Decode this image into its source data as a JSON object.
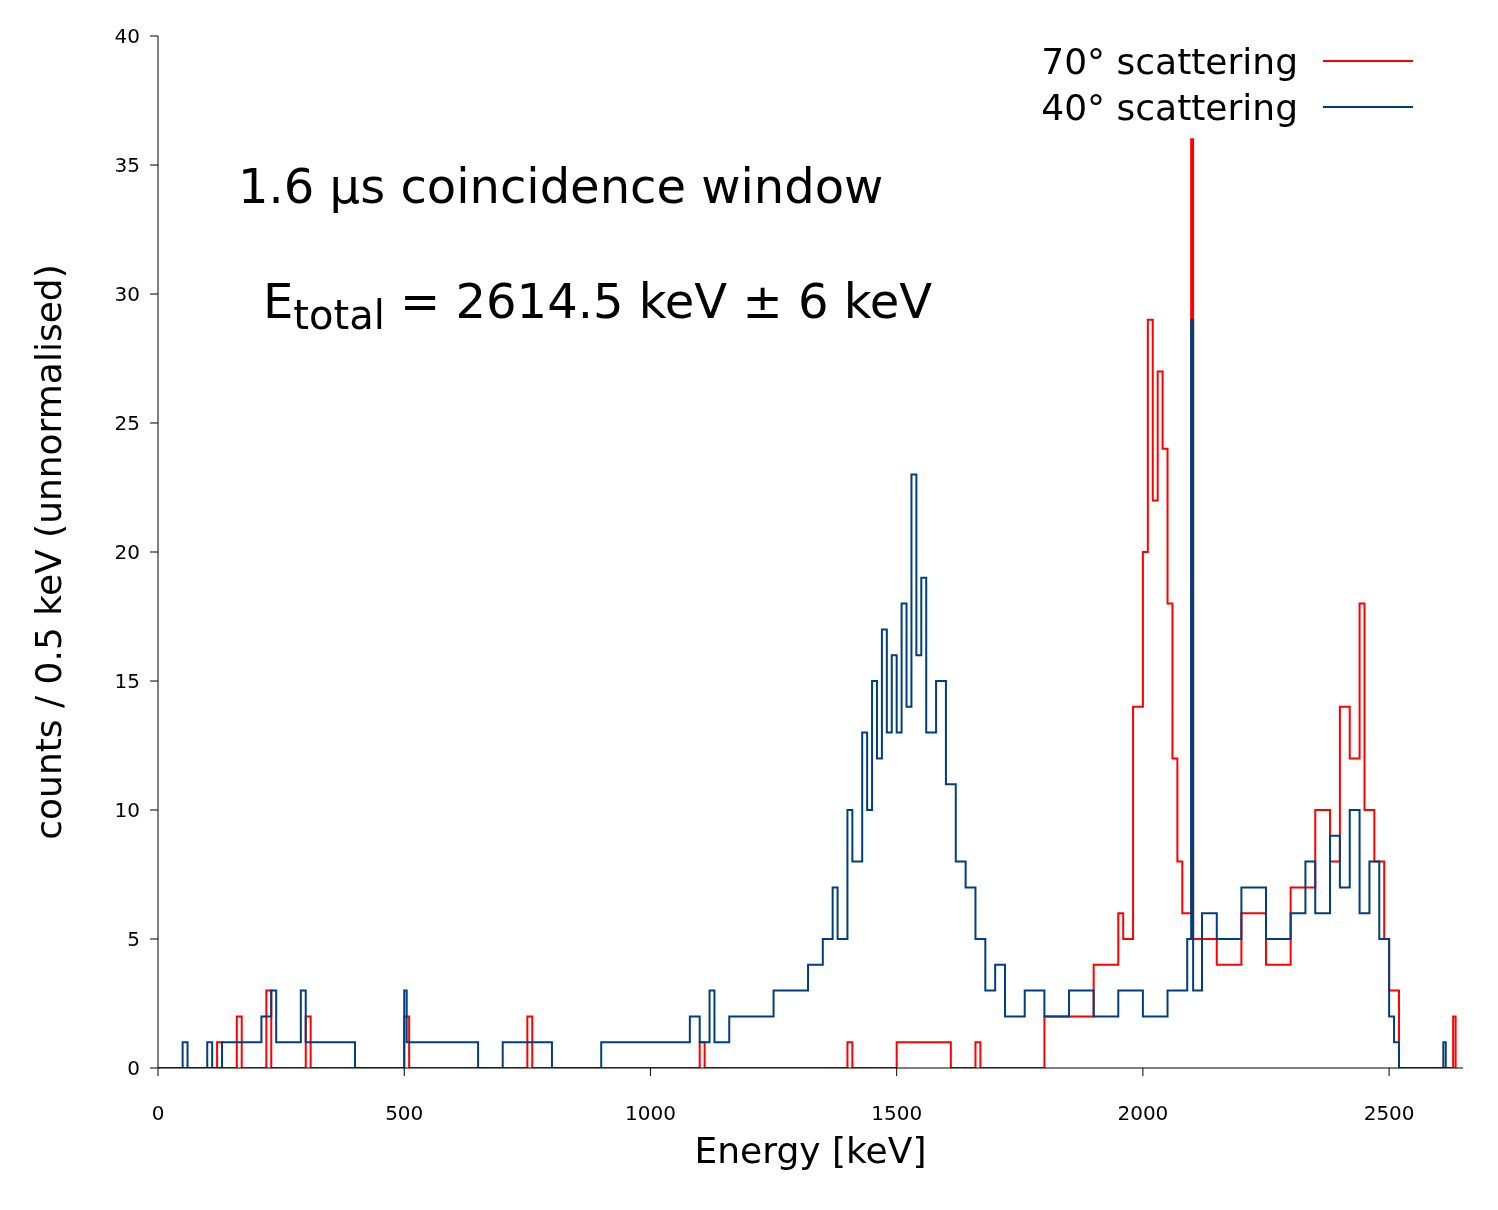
{
  "chart_data": {
    "type": "step",
    "xlabel": "Energy [keV]",
    "ylabel": "counts / 0.5 keV (unnormalised)",
    "annotations": [
      "1.6 μs coincidence window",
      "E$_{total}$ = 2614.5 keV ± 6 keV"
    ],
    "xlim": [
      0,
      2650
    ],
    "xticks": [
      0,
      500,
      1000,
      1500,
      2000,
      2500
    ],
    "ylim": [
      0,
      40
    ],
    "yticks": [
      0,
      5,
      10,
      15,
      20,
      25,
      30,
      35,
      40
    ],
    "legend": "top right",
    "series": [
      {
        "name": "70° scattering",
        "color": "#ff0000",
        "x": [
          0,
          120,
          130,
          160,
          170,
          220,
          230,
          300,
          310,
          500,
          510,
          750,
          760,
          1100,
          1110,
          1400,
          1410,
          1500,
          1600,
          1610,
          1660,
          1670,
          1800,
          1900,
          1950,
          1960,
          1980,
          2000,
          2010,
          2020,
          2030,
          2040,
          2050,
          2060,
          2070,
          2080,
          2098,
          2102,
          2150,
          2200,
          2250,
          2300,
          2350,
          2380,
          2400,
          2420,
          2440,
          2450,
          2470,
          2490,
          2500,
          2520,
          2630,
          2635
        ],
        "values": [
          0,
          1,
          0,
          2,
          0,
          3,
          0,
          2,
          0,
          2,
          0,
          2,
          0,
          1,
          0,
          1,
          0,
          1,
          1,
          0,
          1,
          0,
          2,
          4,
          6,
          5,
          14,
          20,
          29,
          22,
          27,
          24,
          18,
          12,
          8,
          6,
          36,
          5,
          4,
          6,
          4,
          7,
          10,
          8,
          14,
          12,
          18,
          10,
          8,
          5,
          3,
          0,
          2,
          0
        ]
      },
      {
        "name": "40° scattering",
        "color": "#003f7f",
        "x": [
          0,
          50,
          60,
          100,
          110,
          130,
          200,
          210,
          230,
          240,
          290,
          300,
          350,
          400,
          500,
          505,
          600,
          650,
          700,
          800,
          900,
          1050,
          1080,
          1100,
          1120,
          1130,
          1160,
          1200,
          1250,
          1300,
          1320,
          1350,
          1370,
          1380,
          1400,
          1410,
          1430,
          1440,
          1450,
          1460,
          1470,
          1480,
          1490,
          1500,
          1510,
          1520,
          1530,
          1540,
          1550,
          1560,
          1580,
          1600,
          1620,
          1640,
          1660,
          1680,
          1700,
          1720,
          1760,
          1800,
          1850,
          1900,
          1950,
          2000,
          2050,
          2090,
          2098,
          2102,
          2120,
          2150,
          2200,
          2250,
          2300,
          2330,
          2350,
          2380,
          2400,
          2420,
          2440,
          2460,
          2480,
          2500,
          2510,
          2520,
          2610,
          2615
        ],
        "values": [
          0,
          1,
          0,
          1,
          0,
          1,
          1,
          2,
          3,
          1,
          3,
          1,
          1,
          0,
          3,
          1,
          1,
          0,
          1,
          0,
          1,
          1,
          2,
          1,
          3,
          1,
          2,
          2,
          3,
          3,
          4,
          5,
          7,
          5,
          10,
          8,
          13,
          10,
          15,
          12,
          17,
          13,
          16,
          13,
          18,
          14,
          23,
          16,
          19,
          13,
          15,
          11,
          8,
          7,
          5,
          3,
          4,
          2,
          3,
          2,
          3,
          2,
          3,
          2,
          3,
          5,
          29,
          3,
          6,
          5,
          7,
          5,
          6,
          8,
          6,
          9,
          7,
          10,
          6,
          8,
          5,
          2,
          1,
          0,
          1,
          0
        ]
      }
    ]
  }
}
